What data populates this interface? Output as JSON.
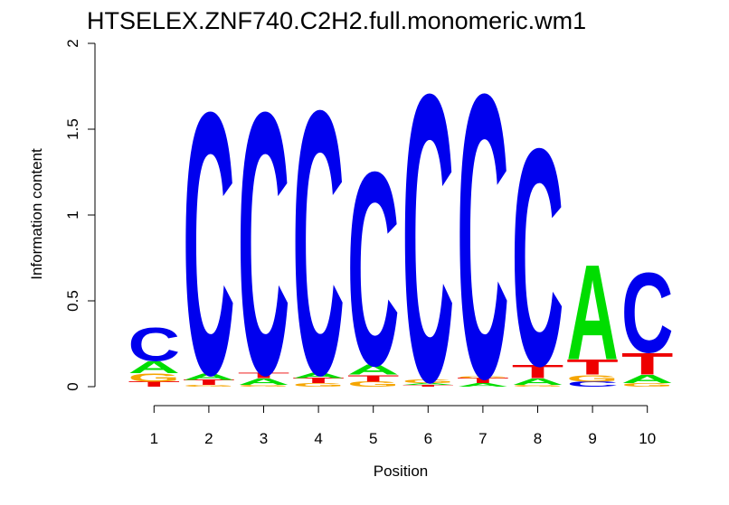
{
  "chart_data": {
    "type": "sequence-logo",
    "title": "HTSELEX.ZNF740.C2H2.full.monomeric.wm1",
    "xlabel": "Position",
    "ylabel": "Information content",
    "ylim": [
      0,
      2
    ],
    "y_ticks": [
      "0",
      "0.5",
      "1",
      "1.5",
      "2"
    ],
    "positions": [
      "1",
      "2",
      "3",
      "4",
      "5",
      "6",
      "7",
      "8",
      "9",
      "10"
    ],
    "letter_colors": {
      "A": "#00dd00",
      "C": "#0000ee",
      "G": "#f5a500",
      "T": "#ee0000"
    },
    "stacks": [
      [
        {
          "letter": "T",
          "height": 0.03
        },
        {
          "letter": "G",
          "height": 0.05
        },
        {
          "letter": "A",
          "height": 0.07
        },
        {
          "letter": "C",
          "height": 0.2
        }
      ],
      [
        {
          "letter": "G",
          "height": 0.01
        },
        {
          "letter": "T",
          "height": 0.03
        },
        {
          "letter": "A",
          "height": 0.04
        },
        {
          "letter": "C",
          "height": 1.57
        }
      ],
      [
        {
          "letter": "G",
          "height": 0.01
        },
        {
          "letter": "A",
          "height": 0.04
        },
        {
          "letter": "T",
          "height": 0.03
        },
        {
          "letter": "C",
          "height": 1.57
        }
      ],
      [
        {
          "letter": "G",
          "height": 0.02
        },
        {
          "letter": "T",
          "height": 0.03
        },
        {
          "letter": "A",
          "height": 0.03
        },
        {
          "letter": "C",
          "height": 1.58
        }
      ],
      [
        {
          "letter": "G",
          "height": 0.03
        },
        {
          "letter": "T",
          "height": 0.04
        },
        {
          "letter": "A",
          "height": 0.06
        },
        {
          "letter": "C",
          "height": 1.16
        }
      ],
      [
        {
          "letter": "T",
          "height": 0.01
        },
        {
          "letter": "A",
          "height": 0.01
        },
        {
          "letter": "G",
          "height": 0.02
        },
        {
          "letter": "C",
          "height": 1.72
        }
      ],
      [
        {
          "letter": "A",
          "height": 0.02
        },
        {
          "letter": "T",
          "height": 0.03
        },
        {
          "letter": "G",
          "height": 0.01
        },
        {
          "letter": "C",
          "height": 1.7
        }
      ],
      [
        {
          "letter": "G",
          "height": 0.01
        },
        {
          "letter": "A",
          "height": 0.04
        },
        {
          "letter": "T",
          "height": 0.08
        },
        {
          "letter": "C",
          "height": 1.3
        }
      ],
      [
        {
          "letter": "C",
          "height": 0.03
        },
        {
          "letter": "G",
          "height": 0.04
        },
        {
          "letter": "T",
          "height": 0.09
        },
        {
          "letter": "A",
          "height": 0.57
        }
      ],
      [
        {
          "letter": "G",
          "height": 0.02
        },
        {
          "letter": "A",
          "height": 0.05
        },
        {
          "letter": "T",
          "height": 0.13
        },
        {
          "letter": "C",
          "height": 0.48
        }
      ]
    ]
  }
}
